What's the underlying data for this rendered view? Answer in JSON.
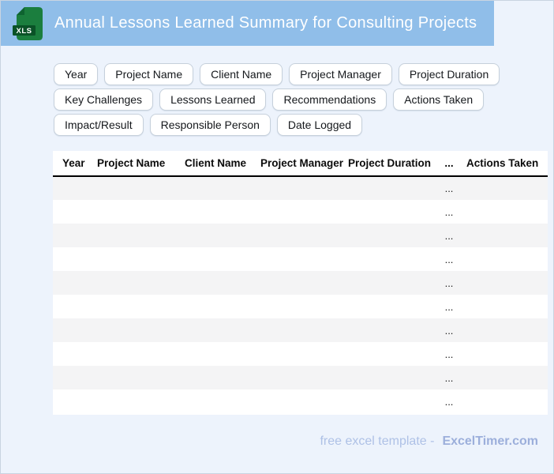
{
  "header": {
    "title": "Annual Lessons Learned Summary for Consulting Projects",
    "icon_label": "XLS"
  },
  "chips": {
    "rows": [
      [
        "Year",
        "Project Name",
        "Client Name",
        "Project Manager",
        "Project Duration"
      ],
      [
        "Key Challenges",
        "Lessons Learned",
        "Recommendations",
        "Actions Taken"
      ],
      [
        "Impact/Result",
        "Responsible Person",
        "Date Logged"
      ]
    ]
  },
  "table": {
    "columns": [
      "Year",
      "Project Name",
      "Client Name",
      "Project Manager",
      "Project Duration",
      "...",
      "Actions Taken"
    ],
    "ellipsis": "...",
    "ellipsis_col": 5,
    "row_count": 10
  },
  "footer": {
    "tagline": "free excel template -",
    "brand": "ExcelTimer.com"
  },
  "colors": {
    "header_bar": "#90bee9",
    "page_background": "#edf3fc",
    "row_stripe": "#f4f4f5",
    "icon_green": "#1b7e3e",
    "icon_dark_green": "#0a5227"
  }
}
